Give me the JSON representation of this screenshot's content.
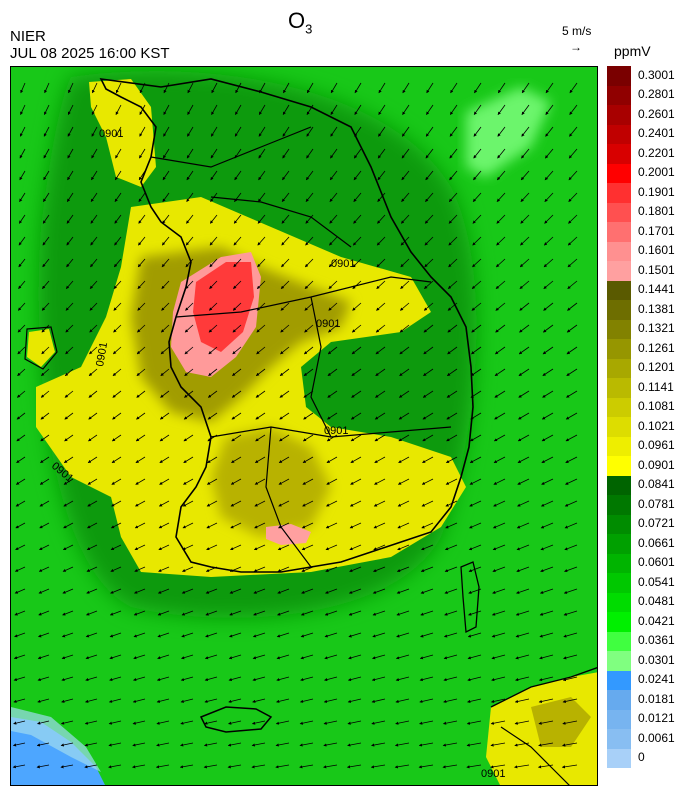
{
  "header": {
    "title": "O",
    "title_sub": "3",
    "org": "NIER",
    "timestamp": "JUL 08 2025 16:00 KST",
    "wind_ref_label": "5 m/s",
    "wind_ref_arrow": "→",
    "unit": "ppmV"
  },
  "legend": {
    "levels": [
      "0.3001",
      "0.2801",
      "0.2601",
      "0.2401",
      "0.2201",
      "0.2001",
      "0.1901",
      "0.1801",
      "0.1701",
      "0.1601",
      "0.1501",
      "0.1441",
      "0.1381",
      "0.1321",
      "0.1261",
      "0.1201",
      "0.1141",
      "0.1081",
      "0.1021",
      "0.0961",
      "0.0901",
      "0.0841",
      "0.0781",
      "0.0721",
      "0.0661",
      "0.0601",
      "0.0541",
      "0.0481",
      "0.0421",
      "0.0361",
      "0.0301",
      "0.0241",
      "0.0181",
      "0.0121",
      "0.0061",
      "0"
    ],
    "colors": [
      "#7a0000",
      "#900000",
      "#a80000",
      "#c00000",
      "#d80000",
      "#ff0000",
      "#ff3030",
      "#ff5050",
      "#ff7070",
      "#ff9090",
      "#ffa0a0",
      "#5a5a00",
      "#6e6e00",
      "#828200",
      "#969600",
      "#a8a800",
      "#baba00",
      "#cccc00",
      "#dddd00",
      "#eeee00",
      "#ffff00",
      "#006400",
      "#007800",
      "#008c00",
      "#00a000",
      "#00b400",
      "#00c800",
      "#00dc00",
      "#00f000",
      "#40ff40",
      "#80ff80",
      "#3399ff",
      "#66aaee",
      "#77b4f0",
      "#88bef2",
      "#a8d0f8"
    ]
  },
  "map": {
    "contour_labels": [
      "0901",
      "0901",
      "0901",
      "0901",
      "0901",
      "0901",
      "0901"
    ],
    "land_regions": [
      "korean-peninsula",
      "jeju-island",
      "kyushu"
    ]
  },
  "colors": {
    "background_green": "#1ec81e",
    "sea_green_dark": "#0a9c0a",
    "ozone_yellow": "#e8e800",
    "ozone_olive": "#9e9a00",
    "ozone_red": "#ff3a3a",
    "ozone_pink": "#ff9a9a",
    "clean_blue": "#4da6ff",
    "border_color": "#000000"
  }
}
